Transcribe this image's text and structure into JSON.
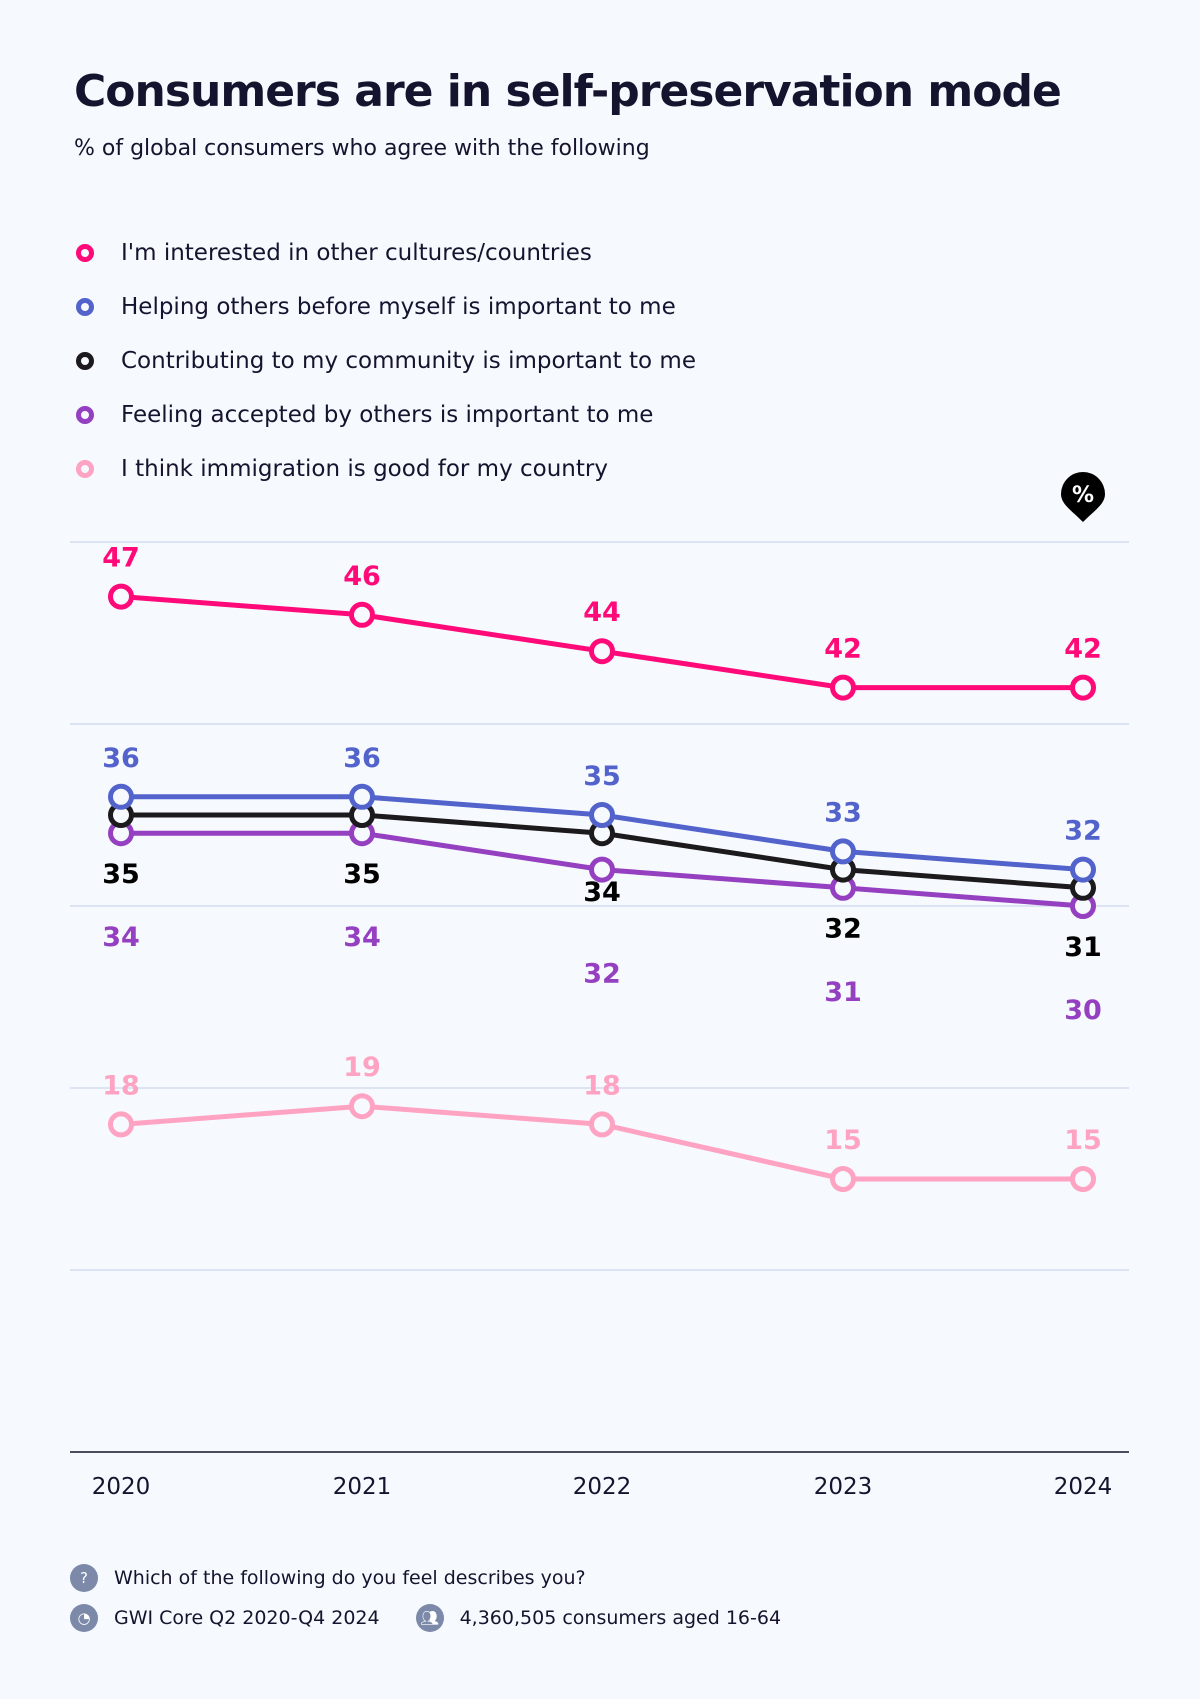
{
  "title": "Consumers are in self-preservation mode",
  "subtitle": "% of global consumers who agree with the following",
  "unit_badge": "%",
  "chart_data": {
    "type": "line",
    "title": "Consumers are in self-preservation mode",
    "subtitle": "% of global consumers who agree with the following",
    "categories": [
      "2020",
      "2021",
      "2022",
      "2023",
      "2024"
    ],
    "ylim": [
      0,
      50
    ],
    "grid": true,
    "legend_placement": "top-left",
    "series": [
      {
        "name": "I'm interested in other cultures/countries",
        "color": "#ff0a78",
        "values": [
          47,
          46,
          44,
          42,
          42
        ],
        "label_pos": "above"
      },
      {
        "name": "Helping others before myself is important to me",
        "color": "#5363cc",
        "values": [
          36,
          36,
          35,
          33,
          32
        ],
        "label_pos": "above"
      },
      {
        "name": "Contributing to my community is important to me",
        "color": "#1c1a1c",
        "values": [
          35,
          35,
          34,
          32,
          31
        ],
        "label_pos": "below"
      },
      {
        "name": "Feeling accepted by others is important to me",
        "color": "#9440c0",
        "values": [
          34,
          34,
          32,
          31,
          30
        ],
        "label_pos": "below2"
      },
      {
        "name": "I think immigration is good for my country",
        "color": "#ffa3c2",
        "values": [
          18,
          19,
          18,
          15,
          15
        ],
        "label_pos": "above"
      }
    ]
  },
  "footer": {
    "question": "Which of the following do you feel describes you?",
    "question_icon": "question-icon",
    "source": "GWI Core Q2 2020-Q4 2024",
    "source_icon": "pie-chart-icon",
    "sample": "4,360,505 consumers aged 16-64",
    "sample_icon": "people-icon"
  }
}
